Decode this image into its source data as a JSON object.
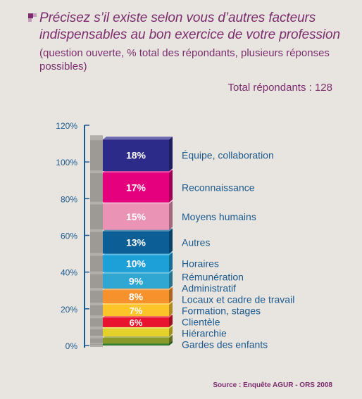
{
  "title": "Précisez s’il existe selon vous d’autres facteurs indispensables au bon exercice de votre profession",
  "subtitle": "(question ouverte, % total des répondants, plusieurs réponses possibles)",
  "total_label": "Total répondants : 128",
  "source": "Source : Enquête AGUR - ORS 2008",
  "chart_data": {
    "type": "bar",
    "orientation": "stacked-column-3d",
    "ylim": [
      0,
      120
    ],
    "yticks": [
      "120%",
      "100%",
      "80%",
      "60%",
      "40%",
      "20%",
      "0%"
    ],
    "ytick_values": [
      120,
      100,
      80,
      60,
      40,
      20,
      0
    ],
    "categories": [
      "Gardes des enfants",
      "Hiérarchie",
      "Clientèle",
      "Formation, stages",
      "Locaux et cadre de travail",
      "Administratif",
      "Rémunération",
      "Horaires",
      "Autres",
      "Moyens humains",
      "Reconnaissance",
      "Équipe, collaboration"
    ],
    "values": [
      1,
      4,
      5,
      6,
      7,
      8,
      9,
      10,
      13,
      15,
      17,
      18
    ],
    "value_labels": [
      "",
      "",
      "",
      "6%",
      "7%",
      "8%",
      "9%",
      "10%",
      "13%",
      "15%",
      "17%",
      "18%"
    ],
    "colors": [
      "#2e7d32",
      "#8a9a2a",
      "#e4d12a",
      "#e8132e",
      "#fbc52a",
      "#f6912b",
      "#2fa7d2",
      "#1d9fd8",
      "#0b5e96",
      "#ea93b4",
      "#e5007e",
      "#2d2b8a"
    ],
    "grid": false,
    "legend": "right"
  }
}
